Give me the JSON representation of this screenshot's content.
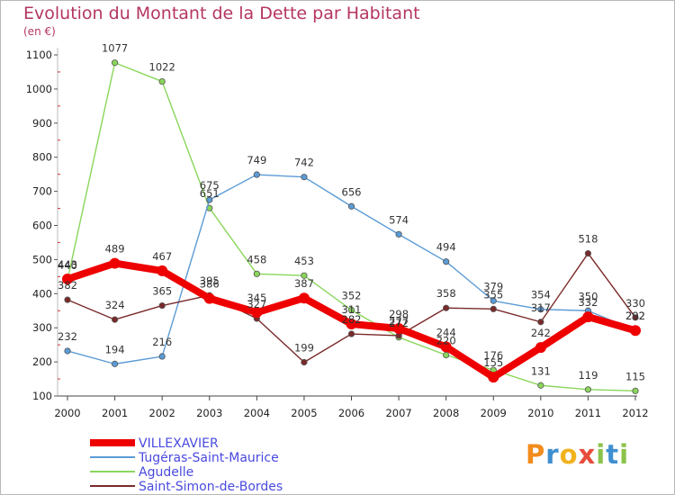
{
  "header": {
    "title": "Evolution du Montant de la Dette par Habitant",
    "unit": "(en €)"
  },
  "logo": {
    "text": "Proxiti",
    "colors": [
      "#f28c1c",
      "#3f8fd0",
      "#f2b21c",
      "#e74c3c",
      "#8bc34a",
      "#3f8fd0",
      "#8bc34a"
    ]
  },
  "chart_data": {
    "type": "line",
    "title": "Evolution du Montant de la Dette par Habitant",
    "ylabel": "(en €)",
    "xlabel": "",
    "ylim": [
      100,
      1100
    ],
    "yticks": [
      100,
      200,
      300,
      400,
      500,
      600,
      700,
      800,
      900,
      1000,
      1100
    ],
    "x": [
      "2000",
      "2001",
      "2002",
      "2003",
      "2004",
      "2005",
      "2006",
      "2007",
      "2008",
      "2009",
      "2010",
      "2011",
      "2012"
    ],
    "grid": false,
    "legend": "bottom-left",
    "series": [
      {
        "name": "VILLEXAVIER",
        "color": "#ee0000",
        "values": [
          443,
          489,
          467,
          386,
          345,
          387,
          311,
          298,
          244,
          155,
          242,
          332,
          292
        ]
      },
      {
        "name": "Tugéras-Saint-Maurice",
        "color": "#5b9bd5",
        "values": [
          232,
          194,
          216,
          675,
          749,
          742,
          656,
          574,
          494,
          379,
          354,
          350,
          292
        ]
      },
      {
        "name": "Agudelle",
        "color": "#8ad65a",
        "values": [
          440,
          1077,
          1022,
          651,
          458,
          453,
          352,
          272,
          220,
          176,
          131,
          119,
          115
        ]
      },
      {
        "name": "Saint-Simon-de-Bordes",
        "color": "#7a2a2a",
        "values": [
          382,
          324,
          365,
          395,
          327,
          199,
          282,
          277,
          358,
          355,
          317,
          518,
          330
        ]
      }
    ]
  }
}
